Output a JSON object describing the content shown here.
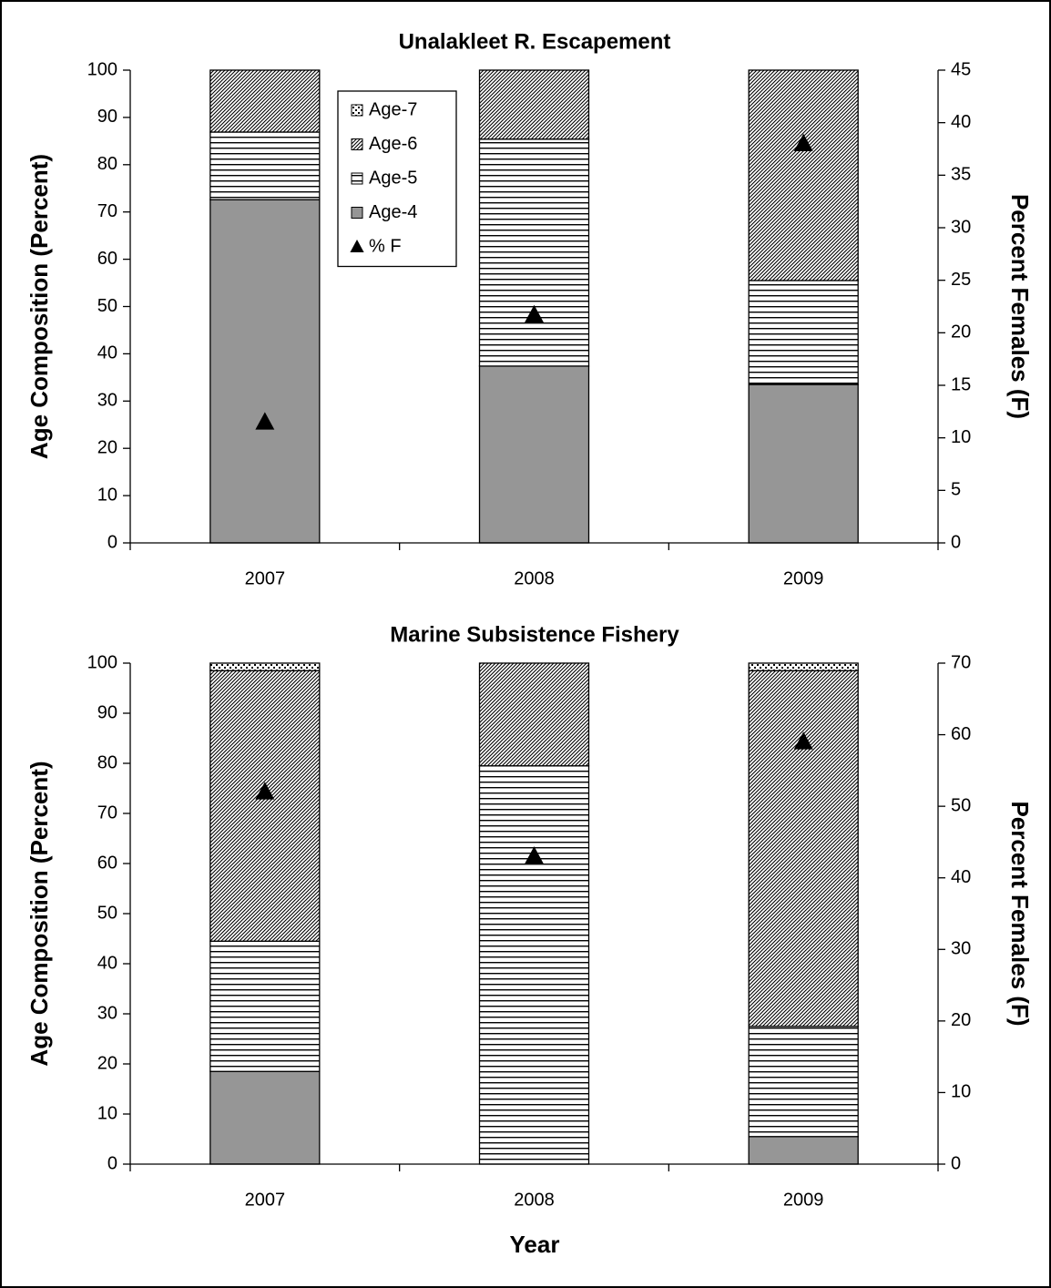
{
  "chart_data": [
    {
      "type": "bar",
      "stacked": true,
      "title": "Unalakleet R. Escapement",
      "y_label": "Age Composition (Percent)",
      "y2_label": "Percent Females (F)",
      "categories": [
        "2007",
        "2008",
        "2009"
      ],
      "series": [
        {
          "name": "Age-4",
          "color": "#969696",
          "pattern": "solid",
          "values": [
            72.6,
            37.4,
            33.5
          ]
        },
        {
          "name": "Age-5",
          "color": "#000000",
          "pattern": "horizontal",
          "values": [
            14.3,
            48.0,
            22.0
          ]
        },
        {
          "name": "Age-6",
          "color": "#000000",
          "pattern": "diagonal",
          "values": [
            13.1,
            14.6,
            44.5
          ]
        },
        {
          "name": "Age-7",
          "color": "#000000",
          "pattern": "dotted",
          "values": [
            0,
            0,
            0
          ]
        },
        {
          "name": "% F",
          "color": "#000000",
          "marker": "triangle",
          "axis": "y2",
          "values": [
            11.5,
            21.7,
            38.0
          ]
        }
      ],
      "ylim": [
        0,
        100
      ],
      "yticks": [
        0,
        10,
        20,
        30,
        40,
        50,
        60,
        70,
        80,
        90,
        100
      ],
      "y2lim": [
        0,
        45
      ],
      "y2ticks": [
        0,
        5,
        10,
        15,
        20,
        25,
        30,
        35,
        40,
        45
      ],
      "legend": "upper-left"
    },
    {
      "type": "bar",
      "stacked": true,
      "title": "Marine Subsistence Fishery",
      "y_label": "Age Composition (Percent)",
      "y2_label": "Percent Females (F)",
      "x_label": "Year",
      "categories": [
        "2007",
        "2008",
        "2009"
      ],
      "series": [
        {
          "color": "#969696",
          "pattern": "solid",
          "values": [
            18.5,
            0,
            5.5
          ]
        },
        {
          "color": "#000000",
          "pattern": "horizontal",
          "values": [
            26.0,
            79.5,
            22.0
          ]
        },
        {
          "color": "#000000",
          "pattern": "diagonal",
          "values": [
            54.0,
            20.5,
            71.0
          ]
        },
        {
          "color": "#000000",
          "pattern": "dotted",
          "values": [
            1.5,
            0,
            1.5
          ]
        },
        {
          "color": "#000000",
          "marker": "triangle",
          "axis": "y2",
          "values": [
            52,
            43,
            59
          ]
        }
      ],
      "ylim": [
        0,
        100
      ],
      "yticks": [
        0,
        10,
        20,
        30,
        40,
        50,
        60,
        70,
        80,
        90,
        100
      ],
      "y2lim": [
        0,
        70
      ],
      "y2ticks": [
        0,
        10,
        20,
        30,
        40,
        50,
        60,
        70
      ]
    }
  ]
}
